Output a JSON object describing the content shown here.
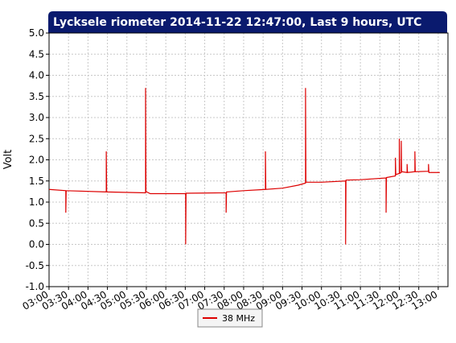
{
  "chart_data": {
    "type": "line",
    "title": "Lycksele riometer 2014-11-22 12:47:00, Last 9 hours, UTC",
    "y_label": "Volt",
    "xlim": [
      3,
      13.25
    ],
    "ylim": [
      -1,
      5
    ],
    "xticks": [
      {
        "value": 3,
        "label": "03:00"
      },
      {
        "value": 3.5,
        "label": "03:30"
      },
      {
        "value": 4,
        "label": "04:00"
      },
      {
        "value": 4.5,
        "label": "04:30"
      },
      {
        "value": 5,
        "label": "05:00"
      },
      {
        "value": 5.5,
        "label": "05:30"
      },
      {
        "value": 6,
        "label": "06:00"
      },
      {
        "value": 6.5,
        "label": "06:30"
      },
      {
        "value": 7,
        "label": "07:00"
      },
      {
        "value": 7.5,
        "label": "07:30"
      },
      {
        "value": 8,
        "label": "08:00"
      },
      {
        "value": 8.5,
        "label": "08:30"
      },
      {
        "value": 9,
        "label": "09:00"
      },
      {
        "value": 9.5,
        "label": "09:30"
      },
      {
        "value": 10,
        "label": "10:00"
      },
      {
        "value": 10.5,
        "label": "10:30"
      },
      {
        "value": 11,
        "label": "11:00"
      },
      {
        "value": 11.5,
        "label": "11:30"
      },
      {
        "value": 12,
        "label": "12:00"
      },
      {
        "value": 12.5,
        "label": "12:30"
      },
      {
        "value": 13,
        "label": "13:00"
      }
    ],
    "yticks": [
      {
        "value": -1,
        "label": "-1.0"
      },
      -0.5,
      {
        "value": 0,
        "label": "0.0"
      },
      0.5,
      {
        "value": 1,
        "label": "1.0"
      },
      1.5,
      {
        "value": 2,
        "label": "2.0"
      },
      2.5,
      {
        "value": 3,
        "label": "3.0"
      },
      3.5,
      {
        "value": 4,
        "label": "4.0"
      },
      4.5,
      {
        "value": 5,
        "label": "5.0"
      }
    ],
    "grid": true,
    "legend": "bottom",
    "x": [
      3.0,
      3.43,
      3.43,
      3.44,
      4.47,
      4.47,
      4.48,
      5.48,
      5.48,
      5.49,
      5.6,
      6.51,
      6.51,
      6.52,
      7.55,
      7.55,
      7.56,
      8.0,
      8.56,
      8.56,
      8.57,
      9.0,
      9.4,
      9.59,
      9.59,
      9.6,
      10.0,
      10.62,
      10.62,
      10.63,
      11.0,
      11.66,
      11.66,
      11.67,
      11.9,
      11.9,
      11.91,
      12.0,
      12.0,
      12.01,
      12.05,
      12.05,
      12.06,
      12.2,
      12.2,
      12.21,
      12.4,
      12.4,
      12.41,
      12.75,
      12.75,
      12.76,
      13.04
    ],
    "series": [
      {
        "name": "38 MHz",
        "color": "#dd0000",
        "values": [
          1.3,
          1.27,
          0.75,
          1.27,
          1.24,
          2.2,
          1.24,
          1.22,
          3.7,
          1.25,
          1.2,
          1.2,
          0.0,
          1.21,
          1.22,
          0.75,
          1.24,
          1.27,
          1.3,
          2.2,
          1.3,
          1.33,
          1.4,
          1.45,
          3.7,
          1.47,
          1.47,
          1.5,
          0.0,
          1.52,
          1.53,
          1.57,
          0.75,
          1.58,
          1.62,
          2.05,
          1.65,
          1.68,
          2.5,
          1.68,
          1.7,
          2.45,
          1.72,
          1.7,
          1.9,
          1.7,
          1.72,
          2.2,
          1.72,
          1.73,
          1.9,
          1.7,
          1.7
        ]
      }
    ]
  }
}
